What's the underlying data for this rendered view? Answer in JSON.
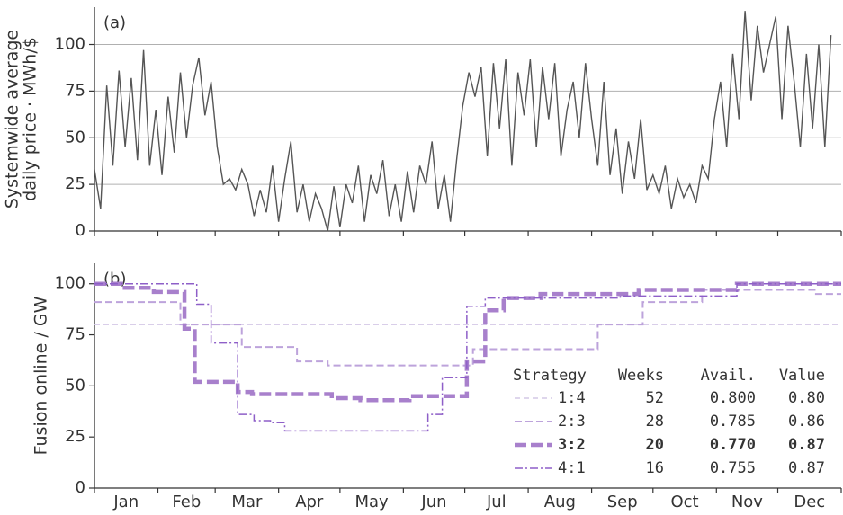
{
  "chart_data": [
    {
      "type": "line",
      "panel_label": "(a)",
      "ylabel": [
        "Systemwide average",
        "daily price · MWh/$"
      ],
      "x": [
        0,
        3,
        6,
        9,
        12,
        15,
        18,
        21,
        24,
        27,
        30,
        33,
        36,
        39,
        42,
        45,
        48,
        51,
        54,
        57,
        60,
        63,
        66,
        69,
        72,
        75,
        78,
        81,
        84,
        87,
        90,
        93,
        96,
        99,
        102,
        105,
        108,
        111,
        114,
        117,
        120,
        123,
        126,
        129,
        132,
        135,
        138,
        141,
        144,
        147,
        150,
        153,
        156,
        159,
        162,
        165,
        168,
        171,
        174,
        177,
        180,
        183,
        186,
        189,
        192,
        195,
        198,
        201,
        204,
        207,
        210,
        213,
        216,
        219,
        222,
        225,
        228,
        231,
        234,
        237,
        240,
        243,
        246,
        249,
        252,
        255,
        258,
        261,
        264,
        267,
        270,
        273,
        276,
        279,
        282,
        285,
        288,
        291,
        294,
        297,
        300,
        303,
        306,
        309,
        312,
        315,
        318,
        321,
        324,
        327,
        330,
        333,
        336,
        339,
        342,
        345,
        348,
        351,
        354,
        357,
        360
      ],
      "series": [
        {
          "name": "price",
          "color": "#555555",
          "values": [
            33,
            12,
            78,
            35,
            86,
            45,
            82,
            38,
            97,
            35,
            65,
            30,
            72,
            42,
            85,
            50,
            78,
            93,
            62,
            80,
            45,
            25,
            28,
            22,
            33,
            25,
            8,
            22,
            10,
            35,
            5,
            28,
            48,
            10,
            25,
            5,
            20,
            12,
            0,
            24,
            2,
            25,
            15,
            35,
            5,
            30,
            20,
            38,
            8,
            25,
            5,
            32,
            10,
            35,
            25,
            48,
            12,
            30,
            5,
            38,
            67,
            85,
            72,
            88,
            40,
            90,
            55,
            92,
            35,
            85,
            62,
            92,
            45,
            88,
            60,
            90,
            40,
            65,
            80,
            50,
            90,
            60,
            35,
            80,
            30,
            55,
            20,
            48,
            28,
            60,
            22,
            30,
            20,
            35,
            12,
            28,
            18,
            25,
            15,
            35,
            28,
            60,
            80,
            45,
            95,
            60,
            118,
            70,
            110,
            85,
            100,
            115,
            60,
            110,
            80,
            45,
            95,
            55,
            100,
            45,
            105
          ]
        }
      ],
      "xlim": [
        0,
        365
      ],
      "xticks": [
        0,
        31,
        59,
        90,
        120,
        151,
        181,
        212,
        243,
        273,
        304,
        334,
        365
      ],
      "xtick_labels": false,
      "ylim": [
        0,
        120
      ],
      "yticks": [
        0,
        25,
        50,
        75,
        100
      ],
      "grid": true
    },
    {
      "type": "step",
      "panel_label": "(b)",
      "ylabel": [
        "Fusion online / GW"
      ],
      "series": [
        {
          "name": "1:4",
          "color": "#d4c8e6",
          "width": 1.5,
          "dash": "6,4",
          "x": [
            0
          ],
          "values": [
            80
          ]
        },
        {
          "name": "2:3",
          "color": "#bda3db",
          "width": 2,
          "dash": "8,4",
          "x": [
            0,
            42,
            72,
            99,
            114,
            185,
            246,
            268,
            297,
            352
          ],
          "values": [
            91,
            80,
            69,
            62,
            60,
            68,
            80,
            91,
            97,
            95
          ]
        },
        {
          "name": "3:2",
          "color": "#a880cc",
          "width": 4.5,
          "dash": "13,5",
          "bold": true,
          "x": [
            0,
            13,
            29,
            44,
            49,
            70,
            77,
            116,
            130,
            154,
            182,
            191,
            200,
            218,
            266,
            314
          ],
          "values": [
            100,
            98,
            96,
            78,
            52,
            47,
            46,
            44,
            43,
            45,
            62,
            87,
            93,
            95,
            97,
            100
          ]
        },
        {
          "name": "4:1",
          "color": "#8e5fc8",
          "width": 1.5,
          "dash": "9,3,2,3",
          "x": [
            0,
            50,
            57,
            70,
            78,
            86,
            93,
            163,
            170,
            182,
            191,
            257,
            314
          ],
          "values": [
            100,
            90,
            71,
            36,
            33,
            32,
            28,
            36,
            54,
            89,
            93,
            94,
            100
          ]
        }
      ],
      "legend_table": {
        "columns": [
          "Strategy",
          "Weeks",
          "Avail.",
          "Value"
        ],
        "rows": [
          [
            "52",
            "0.800",
            "0.80"
          ],
          [
            "28",
            "0.785",
            "0.86"
          ],
          [
            "20",
            "0.770",
            "0.87"
          ],
          [
            "16",
            "0.755",
            "0.87"
          ]
        ]
      },
      "xlim": [
        0,
        365
      ],
      "xticks": [
        {
          "value": 15.5,
          "label": "Jan"
        },
        {
          "value": 45,
          "label": "Feb"
        },
        {
          "value": 74.5,
          "label": "Mar"
        },
        {
          "value": 105,
          "label": "Apr"
        },
        {
          "value": 135.5,
          "label": "May"
        },
        {
          "value": 166,
          "label": "Jun"
        },
        {
          "value": 196.5,
          "label": "Jul"
        },
        {
          "value": 227.5,
          "label": "Aug"
        },
        {
          "value": 258,
          "label": "Sep"
        },
        {
          "value": 288.5,
          "label": "Oct"
        },
        {
          "value": 319,
          "label": "Nov"
        },
        {
          "value": 349.5,
          "label": "Dec"
        }
      ],
      "xminor_ticks": [
        0,
        31,
        59,
        90,
        120,
        151,
        181,
        212,
        243,
        273,
        304,
        334,
        365
      ],
      "ylim": [
        0,
        110
      ],
      "yticks": [
        0,
        25,
        50,
        75,
        100
      ],
      "grid": false
    }
  ]
}
